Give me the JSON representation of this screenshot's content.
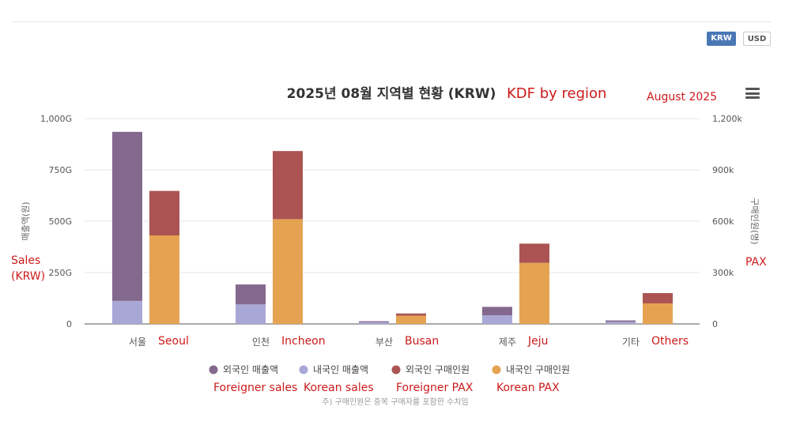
{
  "toolbar": {
    "currency_buttons": [
      "KRW",
      "USD"
    ],
    "active": "KRW"
  },
  "menu": {
    "icon": "hamburger-menu-icon"
  },
  "chart_data": {
    "type": "bar",
    "stacked": true,
    "title": "2025년 08월 지역별 현황 (KRW)",
    "categories": [
      "서울",
      "인천",
      "부산",
      "제주",
      "기타"
    ],
    "y_left": {
      "label": "매출액(원)",
      "ticks": [
        "0",
        "250G",
        "500G",
        "750G",
        "1,000G"
      ],
      "range": [
        0,
        1000
      ]
    },
    "y_right": {
      "label": "구매인원(명)",
      "ticks": [
        "0",
        "300k",
        "600k",
        "900k",
        "1,200k"
      ],
      "range": [
        0,
        1200
      ]
    },
    "stacks": [
      {
        "axis": "left",
        "series": [
          {
            "name": "내국인 매출액",
            "color": "#a9a7d6",
            "values": [
              112,
              95,
              8,
              42,
              10
            ]
          },
          {
            "name": "외국인 매출액",
            "color": "#84698e",
            "values": [
              823,
              97,
              5,
              41,
              7
            ]
          }
        ]
      },
      {
        "axis": "right",
        "series": [
          {
            "name": "내국인 구매인원",
            "color": "#e5a352",
            "values": [
              517,
              612,
              48,
              357,
              120
            ]
          },
          {
            "name": "외국인 구매인원",
            "color": "#ab5453",
            "values": [
              260,
              398,
              13,
              112,
              60
            ]
          }
        ]
      }
    ],
    "legend": {
      "placement": "bottom",
      "items": [
        {
          "name": "외국인 매출액",
          "color": "#84698e"
        },
        {
          "name": "내국인 매출액",
          "color": "#a9a7d6"
        },
        {
          "name": "외국인 구매인원",
          "color": "#ab5453"
        },
        {
          "name": "내국인 구매인원",
          "color": "#e5a352"
        }
      ]
    },
    "footnote": "주) 구매인원은 중복 구매자를 포함한 수치임",
    "grid": true
  },
  "annotations": {
    "title_en": "KDF by region",
    "period_en": "August 2025",
    "left_axis_en": [
      "Sales",
      "(KRW)"
    ],
    "right_axis_en": "PAX",
    "categories_en": [
      "Seoul",
      "Incheon",
      "Busan",
      "Jeju",
      "Others"
    ],
    "legend_en": [
      "Foreigner sales",
      "Korean sales",
      "Foreigner PAX",
      "Korean PAX"
    ],
    "color": "#cc1a1a"
  }
}
